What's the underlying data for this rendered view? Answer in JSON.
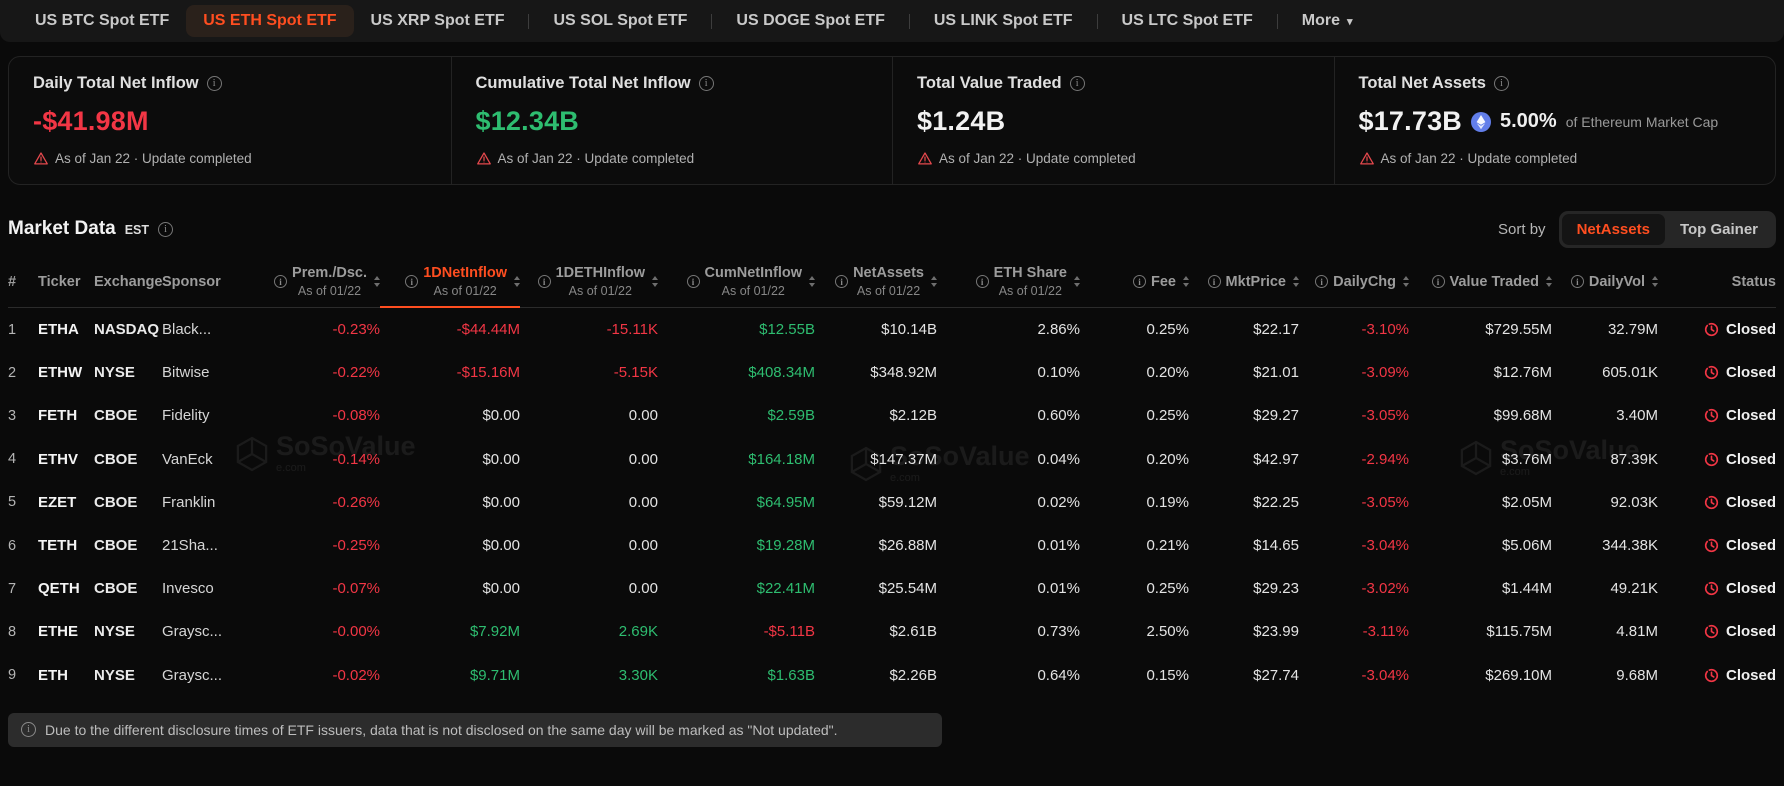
{
  "tabs": [
    {
      "label": "US BTC Spot ETF"
    },
    {
      "label": "US ETH Spot ETF",
      "active": true
    },
    {
      "label": "US XRP Spot ETF"
    },
    {
      "label": "US SOL Spot ETF",
      "sep": true
    },
    {
      "label": "US DOGE Spot ETF",
      "sep": true
    },
    {
      "label": "US LINK Spot ETF",
      "sep": true
    },
    {
      "label": "US LTC Spot ETF",
      "sep": true
    },
    {
      "label": "More",
      "sep": true,
      "caret": "▾"
    }
  ],
  "stats": [
    {
      "title": "Daily Total Net Inflow",
      "value": "-$41.98M",
      "color": "red",
      "footnote": "As of Jan 22 · Update completed"
    },
    {
      "title": "Cumulative Total Net Inflow",
      "value": "$12.34B",
      "color": "green",
      "footnote": "As of Jan 22 · Update completed"
    },
    {
      "title": "Total Value Traded",
      "value": "$1.24B",
      "color": "white",
      "footnote": "As of Jan 22 · Update completed"
    },
    {
      "title": "Total Net Assets",
      "value": "$17.73B",
      "color": "white",
      "eth_share_pct": "5.00%",
      "eth_share_suffix": "of Ethereum Market Cap",
      "footnote": "As of Jan 22 · Update completed"
    }
  ],
  "market": {
    "title": "Market Data",
    "timezone": "EST",
    "sort_by_label": "Sort by",
    "sort_options": [
      {
        "label": "NetAssets",
        "active": true
      },
      {
        "label": "Top Gainer"
      }
    ]
  },
  "table": {
    "columns": [
      {
        "key": "num",
        "label": "#",
        "align": "left"
      },
      {
        "key": "ticker",
        "label": "Ticker",
        "align": "left"
      },
      {
        "key": "exchange",
        "label": "Exchange",
        "align": "left"
      },
      {
        "key": "sponsor",
        "label": "Sponsor",
        "align": "left"
      },
      {
        "key": "prem",
        "label": "Prem./Dsc.",
        "sub": "As of 01/22",
        "info": true,
        "sortable": true
      },
      {
        "key": "inflow1d",
        "label": "1DNetInflow",
        "sub": "As of 01/22",
        "info": true,
        "sortable": true,
        "active": true
      },
      {
        "key": "ethinflow1d",
        "label": "1DETHInflow",
        "sub": "As of 01/22",
        "info": true,
        "sortable": true
      },
      {
        "key": "cuminflow",
        "label": "CumNetInflow",
        "sub": "As of 01/22",
        "info": true,
        "sortable": true
      },
      {
        "key": "netassets",
        "label": "NetAssets",
        "sub": "As of 01/22",
        "info": true,
        "sortable": true
      },
      {
        "key": "ethshare",
        "label": "ETH Share",
        "sub": "As of 01/22",
        "info": true,
        "sortable": true
      },
      {
        "key": "fee",
        "label": "Fee",
        "info": true,
        "sortable": true
      },
      {
        "key": "mktprice",
        "label": "MktPrice",
        "info": true,
        "sortable": true
      },
      {
        "key": "dailychg",
        "label": "DailyChg",
        "info": true,
        "sortable": true
      },
      {
        "key": "valuetraded",
        "label": "Value Traded",
        "info": true,
        "sortable": true
      },
      {
        "key": "dailyvol",
        "label": "DailyVol",
        "info": true,
        "sortable": true
      },
      {
        "key": "status",
        "label": "Status"
      }
    ],
    "rows": [
      {
        "num": "1",
        "ticker": "ETHA",
        "exchange": "NASDAQ",
        "sponsor": "Black...",
        "prem": {
          "v": "-0.23%",
          "c": "red"
        },
        "inflow1d": {
          "v": "-$44.44M",
          "c": "red"
        },
        "ethinflow1d": {
          "v": "-15.11K",
          "c": "red"
        },
        "cuminflow": {
          "v": "$12.55B",
          "c": "green"
        },
        "netassets": "$10.14B",
        "ethshare": "2.86%",
        "fee": "0.25%",
        "mktprice": "$22.17",
        "dailychg": {
          "v": "-3.10%",
          "c": "red"
        },
        "valuetraded": "$729.55M",
        "dailyvol": "32.79M",
        "status": "Closed"
      },
      {
        "num": "2",
        "ticker": "ETHW",
        "exchange": "NYSE",
        "sponsor": "Bitwise",
        "prem": {
          "v": "-0.22%",
          "c": "red"
        },
        "inflow1d": {
          "v": "-$15.16M",
          "c": "red"
        },
        "ethinflow1d": {
          "v": "-5.15K",
          "c": "red"
        },
        "cuminflow": {
          "v": "$408.34M",
          "c": "green"
        },
        "netassets": "$348.92M",
        "ethshare": "0.10%",
        "fee": "0.20%",
        "mktprice": "$21.01",
        "dailychg": {
          "v": "-3.09%",
          "c": "red"
        },
        "valuetraded": "$12.76M",
        "dailyvol": "605.01K",
        "status": "Closed"
      },
      {
        "num": "3",
        "ticker": "FETH",
        "exchange": "CBOE",
        "sponsor": "Fidelity",
        "prem": {
          "v": "-0.08%",
          "c": "red"
        },
        "inflow1d": {
          "v": "$0.00",
          "c": "white"
        },
        "ethinflow1d": {
          "v": "0.00",
          "c": "white"
        },
        "cuminflow": {
          "v": "$2.59B",
          "c": "green"
        },
        "netassets": "$2.12B",
        "ethshare": "0.60%",
        "fee": "0.25%",
        "mktprice": "$29.27",
        "dailychg": {
          "v": "-3.05%",
          "c": "red"
        },
        "valuetraded": "$99.68M",
        "dailyvol": "3.40M",
        "status": "Closed"
      },
      {
        "num": "4",
        "ticker": "ETHV",
        "exchange": "CBOE",
        "sponsor": "VanEck",
        "prem": {
          "v": "-0.14%",
          "c": "red"
        },
        "inflow1d": {
          "v": "$0.00",
          "c": "white"
        },
        "ethinflow1d": {
          "v": "0.00",
          "c": "white"
        },
        "cuminflow": {
          "v": "$164.18M",
          "c": "green"
        },
        "netassets": "$147.37M",
        "ethshare": "0.04%",
        "fee": "0.20%",
        "mktprice": "$42.97",
        "dailychg": {
          "v": "-2.94%",
          "c": "red"
        },
        "valuetraded": "$3.76M",
        "dailyvol": "87.39K",
        "status": "Closed"
      },
      {
        "num": "5",
        "ticker": "EZET",
        "exchange": "CBOE",
        "sponsor": "Franklin",
        "prem": {
          "v": "-0.26%",
          "c": "red"
        },
        "inflow1d": {
          "v": "$0.00",
          "c": "white"
        },
        "ethinflow1d": {
          "v": "0.00",
          "c": "white"
        },
        "cuminflow": {
          "v": "$64.95M",
          "c": "green"
        },
        "netassets": "$59.12M",
        "ethshare": "0.02%",
        "fee": "0.19%",
        "mktprice": "$22.25",
        "dailychg": {
          "v": "-3.05%",
          "c": "red"
        },
        "valuetraded": "$2.05M",
        "dailyvol": "92.03K",
        "status": "Closed"
      },
      {
        "num": "6",
        "ticker": "TETH",
        "exchange": "CBOE",
        "sponsor": "21Sha...",
        "prem": {
          "v": "-0.25%",
          "c": "red"
        },
        "inflow1d": {
          "v": "$0.00",
          "c": "white"
        },
        "ethinflow1d": {
          "v": "0.00",
          "c": "white"
        },
        "cuminflow": {
          "v": "$19.28M",
          "c": "green"
        },
        "netassets": "$26.88M",
        "ethshare": "0.01%",
        "fee": "0.21%",
        "mktprice": "$14.65",
        "dailychg": {
          "v": "-3.04%",
          "c": "red"
        },
        "valuetraded": "$5.06M",
        "dailyvol": "344.38K",
        "status": "Closed"
      },
      {
        "num": "7",
        "ticker": "QETH",
        "exchange": "CBOE",
        "sponsor": "Invesco",
        "prem": {
          "v": "-0.07%",
          "c": "red"
        },
        "inflow1d": {
          "v": "$0.00",
          "c": "white"
        },
        "ethinflow1d": {
          "v": "0.00",
          "c": "white"
        },
        "cuminflow": {
          "v": "$22.41M",
          "c": "green"
        },
        "netassets": "$25.54M",
        "ethshare": "0.01%",
        "fee": "0.25%",
        "mktprice": "$29.23",
        "dailychg": {
          "v": "-3.02%",
          "c": "red"
        },
        "valuetraded": "$1.44M",
        "dailyvol": "49.21K",
        "status": "Closed"
      },
      {
        "num": "8",
        "ticker": "ETHE",
        "exchange": "NYSE",
        "sponsor": "Graysc...",
        "prem": {
          "v": "-0.00%",
          "c": "red"
        },
        "inflow1d": {
          "v": "$7.92M",
          "c": "green"
        },
        "ethinflow1d": {
          "v": "2.69K",
          "c": "green"
        },
        "cuminflow": {
          "v": "-$5.11B",
          "c": "red"
        },
        "netassets": "$2.61B",
        "ethshare": "0.73%",
        "fee": "2.50%",
        "mktprice": "$23.99",
        "dailychg": {
          "v": "-3.11%",
          "c": "red"
        },
        "valuetraded": "$115.75M",
        "dailyvol": "4.81M",
        "status": "Closed"
      },
      {
        "num": "9",
        "ticker": "ETH",
        "exchange": "NYSE",
        "sponsor": "Graysc...",
        "prem": {
          "v": "-0.02%",
          "c": "red"
        },
        "inflow1d": {
          "v": "$9.71M",
          "c": "green"
        },
        "ethinflow1d": {
          "v": "3.30K",
          "c": "green"
        },
        "cuminflow": {
          "v": "$1.63B",
          "c": "green"
        },
        "netassets": "$2.26B",
        "ethshare": "0.64%",
        "fee": "0.15%",
        "mktprice": "$27.74",
        "dailychg": {
          "v": "-3.04%",
          "c": "red"
        },
        "valuetraded": "$269.10M",
        "dailyvol": "9.68M",
        "status": "Closed"
      }
    ]
  },
  "footer_note": "Due to the different disclosure times of ETF issuers, data that is not disclosed on the same day will be marked as \"Not updated\".",
  "watermark": {
    "brand": "SoSoValue",
    "suffix": "e.com"
  },
  "colors": {
    "accent_orange": "#ff4e20",
    "negative_red": "#f23645",
    "positive_green": "#2ebd70",
    "eth_blue": "#627eea",
    "warning_red": "#e5484d",
    "page_bg": "#0a0a0a"
  }
}
